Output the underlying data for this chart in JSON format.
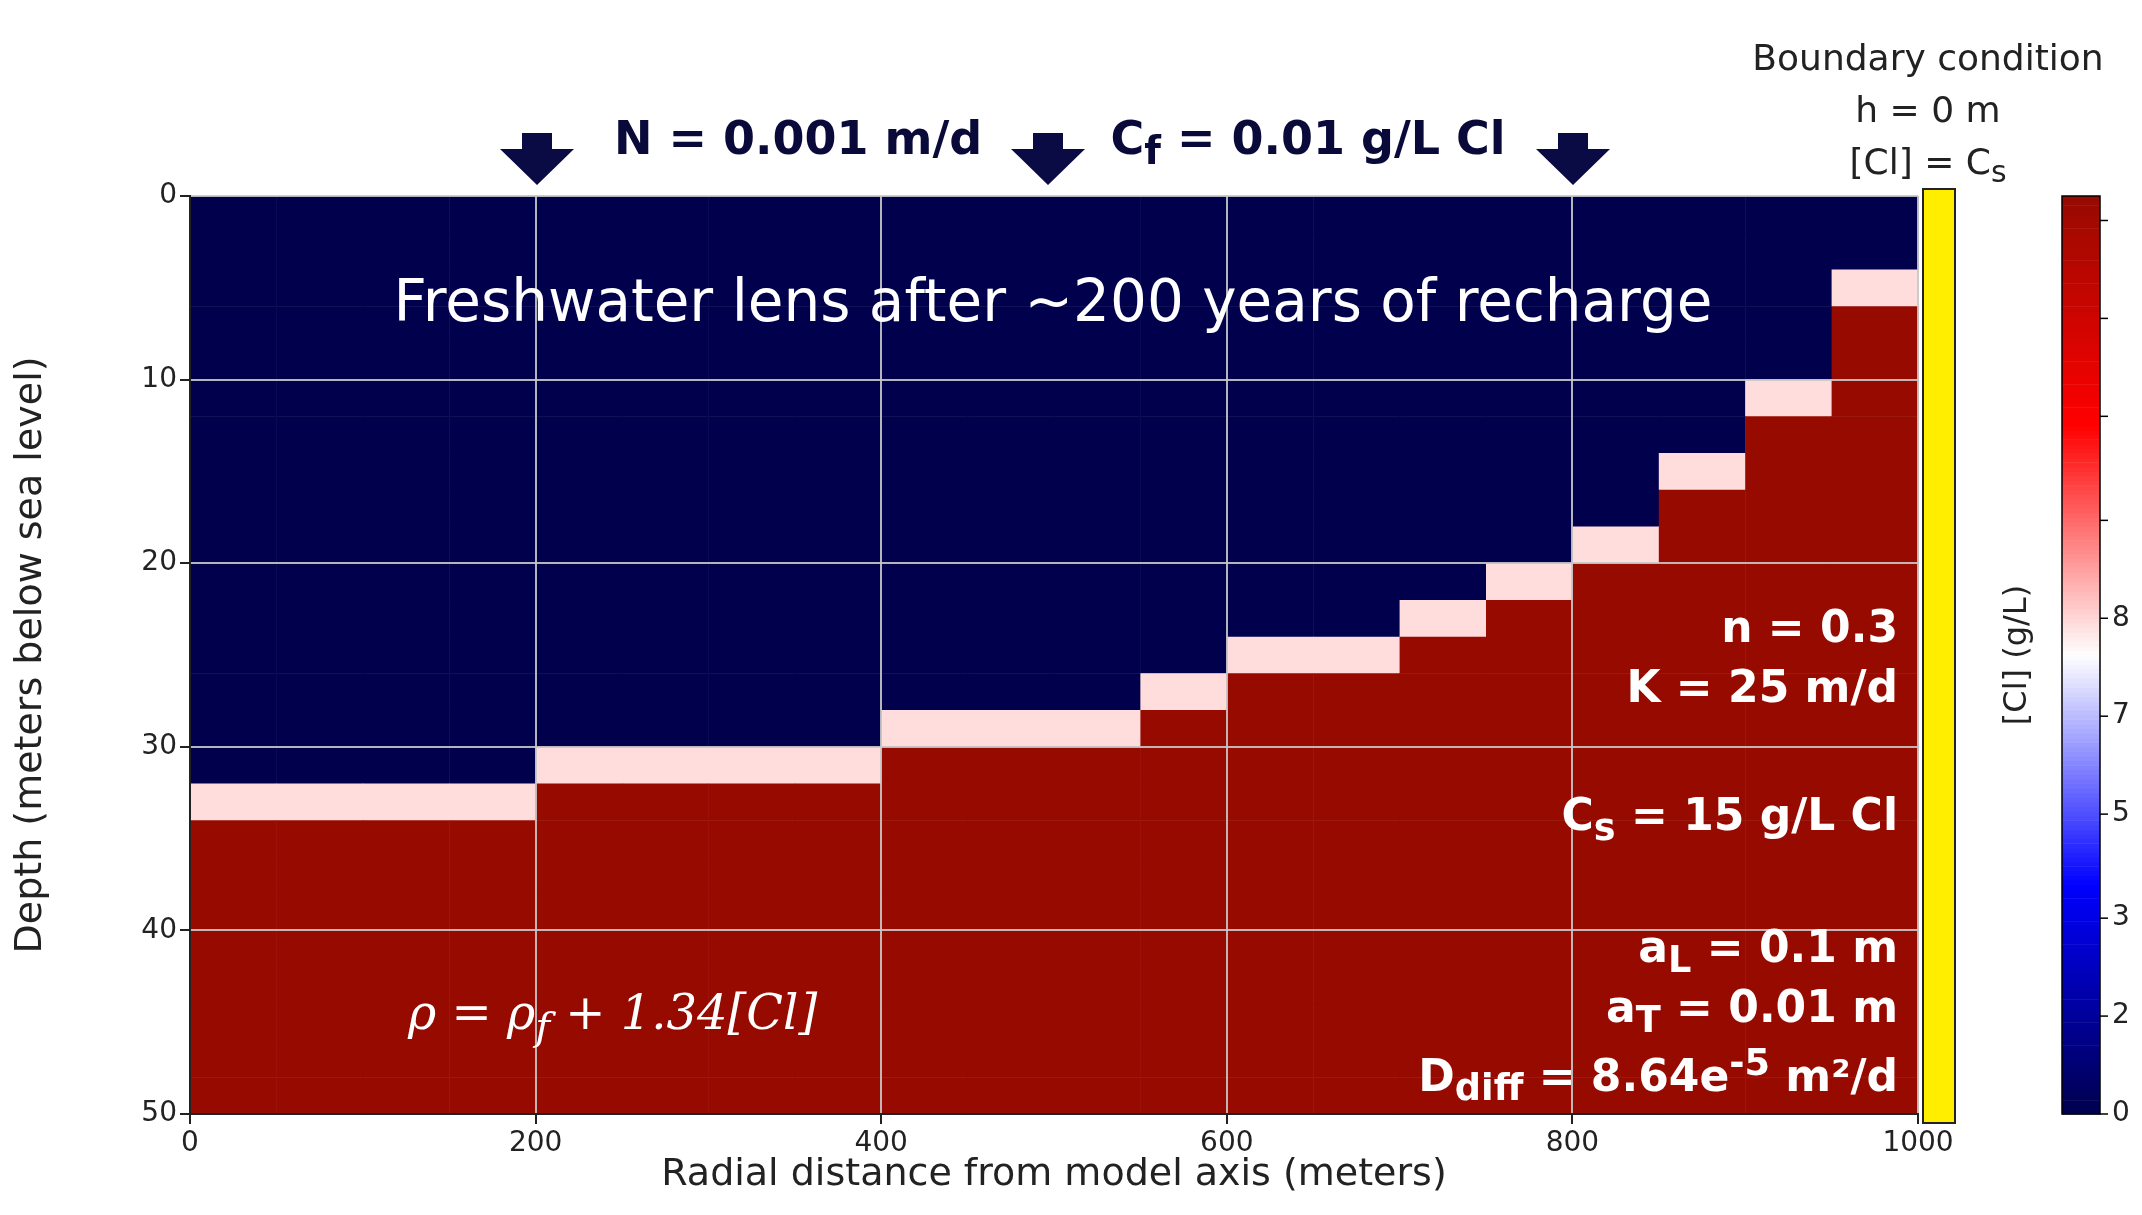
{
  "chart_data": {
    "type": "heatmap",
    "xlabel": "Radial distance from model axis (meters)",
    "ylabel": "Depth (meters below sea level)",
    "clabel": "[Cl] (g/L)",
    "xlim": [
      0,
      1000
    ],
    "xticks": [
      0,
      200,
      400,
      600,
      800,
      1000
    ],
    "ylim": [
      50,
      0
    ],
    "yticks": [
      0,
      10,
      20,
      30,
      40,
      50
    ],
    "grid": true,
    "clim": [
      0,
      15
    ],
    "cticks": [
      {
        "value": 0,
        "label": "0"
      },
      {
        "value": 1.6,
        "label": "2"
      },
      {
        "value": 3.2,
        "label": "3"
      },
      {
        "value": 4.9,
        "label": "5"
      },
      {
        "value": 6.5,
        "label": "7"
      },
      {
        "value": 8.1,
        "label": "8"
      },
      {
        "value": 9.7,
        "label": null
      },
      {
        "value": 11.4,
        "label": null
      },
      {
        "value": 13,
        "label": null
      },
      {
        "value": 14.6,
        "label": null
      }
    ],
    "cells": [
      [
        0,
        0,
        0,
        0,
        0,
        0,
        0,
        0,
        0,
        0,
        0,
        0,
        0,
        0,
        0,
        0,
        0,
        0,
        0,
        0
      ],
      [
        0,
        0,
        0,
        0,
        0,
        0,
        0,
        0,
        0,
        0,
        0,
        0,
        0,
        0,
        0,
        0,
        0,
        0,
        0,
        0
      ],
      [
        0,
        0,
        0,
        0,
        0,
        0,
        0,
        0,
        0,
        0,
        0,
        0,
        0,
        0,
        0,
        0,
        0,
        0,
        0,
        8
      ],
      [
        0,
        0,
        0,
        0,
        0,
        0,
        0,
        0,
        0,
        0,
        0,
        0,
        0,
        0,
        0,
        0,
        0,
        0,
        0,
        15
      ],
      [
        0,
        0,
        0,
        0,
        0,
        0,
        0,
        0,
        0,
        0,
        0,
        0,
        0,
        0,
        0,
        0,
        0,
        0,
        0,
        15
      ],
      [
        0,
        0,
        0,
        0,
        0,
        0,
        0,
        0,
        0,
        0,
        0,
        0,
        0,
        0,
        0,
        0,
        0,
        0,
        8,
        15
      ],
      [
        0,
        0,
        0,
        0,
        0,
        0,
        0,
        0,
        0,
        0,
        0,
        0,
        0,
        0,
        0,
        0,
        0,
        0,
        15,
        15
      ],
      [
        0,
        0,
        0,
        0,
        0,
        0,
        0,
        0,
        0,
        0,
        0,
        0,
        0,
        0,
        0,
        0,
        0,
        8,
        15,
        15
      ],
      [
        0,
        0,
        0,
        0,
        0,
        0,
        0,
        0,
        0,
        0,
        0,
        0,
        0,
        0,
        0,
        0,
        0,
        15,
        15,
        15
      ],
      [
        0,
        0,
        0,
        0,
        0,
        0,
        0,
        0,
        0,
        0,
        0,
        0,
        0,
        0,
        0,
        0,
        8,
        15,
        15,
        15
      ],
      [
        0,
        0,
        0,
        0,
        0,
        0,
        0,
        0,
        0,
        0,
        0,
        0,
        0,
        0,
        0,
        8,
        15,
        15,
        15,
        15
      ],
      [
        0,
        0,
        0,
        0,
        0,
        0,
        0,
        0,
        0,
        0,
        0,
        0,
        0,
        0,
        8,
        15,
        15,
        15,
        15,
        15
      ],
      [
        0,
        0,
        0,
        0,
        0,
        0,
        0,
        0,
        0,
        0,
        0,
        0,
        8,
        8,
        15,
        15,
        15,
        15,
        15,
        15
      ],
      [
        0,
        0,
        0,
        0,
        0,
        0,
        0,
        0,
        0,
        0,
        0,
        8,
        15,
        15,
        15,
        15,
        15,
        15,
        15,
        15
      ],
      [
        0,
        0,
        0,
        0,
        0,
        0,
        0,
        0,
        8,
        8,
        8,
        15,
        15,
        15,
        15,
        15,
        15,
        15,
        15,
        15
      ],
      [
        0,
        0,
        0,
        0,
        8,
        8,
        8,
        8,
        15,
        15,
        15,
        15,
        15,
        15,
        15,
        15,
        15,
        15,
        15,
        15
      ],
      [
        8,
        8,
        8,
        8,
        15,
        15,
        15,
        15,
        15,
        15,
        15,
        15,
        15,
        15,
        15,
        15,
        15,
        15,
        15,
        15
      ],
      [
        15,
        15,
        15,
        15,
        15,
        15,
        15,
        15,
        15,
        15,
        15,
        15,
        15,
        15,
        15,
        15,
        15,
        15,
        15,
        15
      ],
      [
        15,
        15,
        15,
        15,
        15,
        15,
        15,
        15,
        15,
        15,
        15,
        15,
        15,
        15,
        15,
        15,
        15,
        15,
        15,
        15
      ],
      [
        15,
        15,
        15,
        15,
        15,
        15,
        15,
        15,
        15,
        15,
        15,
        15,
        15,
        15,
        15,
        15,
        15,
        15,
        15,
        15
      ],
      [
        15,
        15,
        15,
        15,
        15,
        15,
        15,
        15,
        15,
        15,
        15,
        15,
        15,
        15,
        15,
        15,
        15,
        15,
        15,
        15
      ],
      [
        15,
        15,
        15,
        15,
        15,
        15,
        15,
        15,
        15,
        15,
        15,
        15,
        15,
        15,
        15,
        15,
        15,
        15,
        15,
        15
      ],
      [
        15,
        15,
        15,
        15,
        15,
        15,
        15,
        15,
        15,
        15,
        15,
        15,
        15,
        15,
        15,
        15,
        15,
        15,
        15,
        15
      ],
      [
        15,
        15,
        15,
        15,
        15,
        15,
        15,
        15,
        15,
        15,
        15,
        15,
        15,
        15,
        15,
        15,
        15,
        15,
        15,
        15
      ],
      [
        15,
        15,
        15,
        15,
        15,
        15,
        15,
        15,
        15,
        15,
        15,
        15,
        15,
        15,
        15,
        15,
        15,
        15,
        15,
        15
      ]
    ],
    "annotations": [
      "N = 0.001 m/d",
      "C$_{f}$ = 0.01 g/L Cl",
      "Boundary condition",
      "h = 0 m",
      "[Cl] = C$_{s}$",
      "Freshwater lens after ~200 years of recharge",
      "n = 0.3",
      "K = 25 m/d",
      "C$_{s}$ = 15 g/L Cl",
      "a$_{L}$ = 0.1 m",
      "a$_{T}$ = 0.01 m",
      "D$_{diff}$ = 8.64e$^{-5}$ m²/d",
      "ρ = ρ$_{f}$ + 1.34[Cl]"
    ]
  }
}
